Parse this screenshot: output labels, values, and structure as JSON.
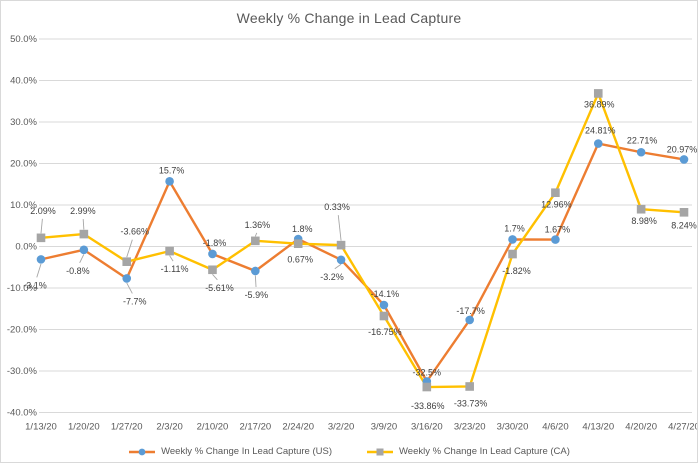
{
  "colors": {
    "us_line": "#ED7D31",
    "us_marker": "#5B9BD5",
    "ca_line": "#FFC000",
    "ca_marker": "#A5A5A5",
    "gridline": "#D9D9D9",
    "axis_text": "#595959",
    "title_text": "#595959",
    "label_text": "#404040",
    "leader_line": "#A6A6A6",
    "border": "#D9D9D9",
    "background": "#FFFFFF"
  },
  "chart_data": {
    "type": "line",
    "title": "Weekly % Change in Lead Capture",
    "categories": [
      "1/13/20",
      "1/20/20",
      "1/27/20",
      "2/3/20",
      "2/10/20",
      "2/17/20",
      "2/24/20",
      "3/2/20",
      "3/9/20",
      "3/16/20",
      "3/23/20",
      "3/30/20",
      "4/6/20",
      "4/13/20",
      "4/20/20",
      "4/27/20"
    ],
    "y_axis": {
      "min": -40,
      "max": 50,
      "step": 10,
      "tick_labels": [
        "50.0%",
        "40.0%",
        "30.0%",
        "20.0%",
        "10.0%",
        "0.0%",
        "-10.0%",
        "-20.0%",
        "-30.0%",
        "-40.0%"
      ]
    },
    "grid": true,
    "legend_position": "bottom",
    "series": [
      {
        "name": "Weekly % Change In Lead Capture (US)",
        "line_color": "#ED7D31",
        "marker": "circle",
        "marker_color": "#5B9BD5",
        "values": [
          -3.1,
          -0.8,
          -7.7,
          15.7,
          -1.8,
          -5.9,
          1.8,
          -3.2,
          -14.1,
          -32.5,
          -17.7,
          1.7,
          1.67,
          24.81,
          22.71,
          20.97
        ],
        "labels": [
          "-3.1%",
          "-0.8%",
          "-7.7%",
          "15.7%",
          "-1.8%",
          "-5.9%",
          "1.8%",
          "-3.2%",
          "-14.1%",
          "-32.5%",
          "-17.7%",
          "1.7%",
          "1.67%",
          "24.81%",
          "22.71%",
          "20.97%"
        ],
        "label_offsets": [
          [
            -6,
            26,
            1
          ],
          [
            -6,
            21,
            1
          ],
          [
            8,
            23,
            1
          ],
          [
            2,
            -11,
            0
          ],
          [
            2,
            -11,
            0
          ],
          [
            1,
            24,
            1
          ],
          [
            4,
            -10,
            0
          ],
          [
            -9,
            17,
            1
          ],
          [
            1,
            -11,
            0
          ],
          [
            0,
            -9,
            0
          ],
          [
            1,
            -9,
            0
          ],
          [
            2,
            -11,
            0
          ],
          [
            2,
            -10,
            0
          ],
          [
            2,
            -13,
            0
          ],
          [
            1,
            -12,
            0
          ],
          [
            -2,
            -10,
            0
          ]
        ]
      },
      {
        "name": "Weekly % Change In Lead Capture (CA)",
        "line_color": "#FFC000",
        "marker": "square",
        "marker_color": "#A5A5A5",
        "values": [
          2.09,
          2.99,
          -3.66,
          -1.11,
          -5.61,
          1.36,
          0.67,
          0.33,
          -16.75,
          -33.86,
          -33.73,
          -1.82,
          12.96,
          36.89,
          8.98,
          8.24
        ],
        "labels": [
          "2.09%",
          "2.99%",
          "-3.66%",
          "-1.11%",
          "-5.61%",
          "1.36%",
          "0.67%",
          "0.33%",
          "-16.75%",
          "-33.86%",
          "-33.73%",
          "-1.82%",
          "12.96%",
          "36.89%",
          "8.98%",
          "8.24%"
        ],
        "label_offsets": [
          [
            2,
            -27,
            1
          ],
          [
            -1,
            -23,
            1
          ],
          [
            8,
            -30,
            1
          ],
          [
            5,
            18,
            1
          ],
          [
            7,
            18,
            1
          ],
          [
            2,
            -16,
            1
          ],
          [
            2,
            16,
            0
          ],
          [
            -4,
            -38,
            1
          ],
          [
            1,
            16,
            0
          ],
          [
            1,
            19,
            0
          ],
          [
            1,
            17,
            0
          ],
          [
            4,
            17,
            0
          ],
          [
            1,
            12,
            0
          ],
          [
            1,
            11,
            0
          ],
          [
            3,
            12,
            0
          ],
          [
            0,
            13,
            0
          ]
        ]
      }
    ]
  }
}
